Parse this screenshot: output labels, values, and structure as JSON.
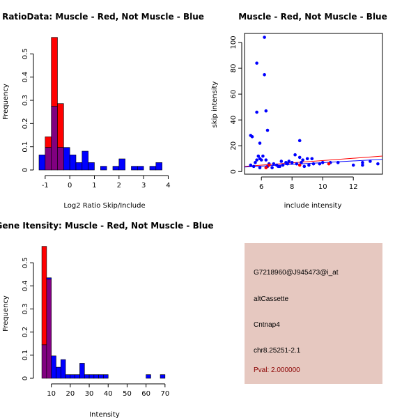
{
  "colors": {
    "red": "#ff0000",
    "blue": "#0000ff",
    "overlap": "#800080",
    "panel_bg": "#e6c8c0",
    "pval": "#8b0000"
  },
  "chart_data": [
    {
      "type": "bar",
      "title": "RatioData: Muscle - Red, Not Muscle - Blue",
      "xlabel": "Log2 Ratio Skip/Include",
      "ylabel": "Frequency",
      "xlim": [
        -1.25,
        4.1
      ],
      "ylim": [
        0,
        0.6
      ],
      "xticks": [
        -1,
        0,
        1,
        2,
        3,
        4
      ],
      "yticks": [
        0,
        0.1,
        0.2,
        0.3,
        0.4,
        0.5
      ],
      "bin_edges": [
        -1.25,
        -1.0,
        -0.75,
        -0.5,
        -0.25,
        0.0,
        0.25,
        0.5,
        0.75,
        1.0,
        1.25,
        1.5,
        1.75,
        2.0,
        2.25,
        2.5,
        2.75,
        3.0,
        3.25,
        3.5,
        3.75,
        4.0
      ],
      "series": [
        {
          "name": "Muscle",
          "color": "red",
          "values": [
            0,
            0.143,
            0.571,
            0.286,
            0,
            0,
            0,
            0,
            0,
            0,
            0,
            0,
            0,
            0,
            0,
            0,
            0,
            0,
            0,
            0,
            0
          ]
        },
        {
          "name": "Not Muscle",
          "color": "blue",
          "values": [
            0.065,
            0.097,
            0.274,
            0.097,
            0.097,
            0.065,
            0.032,
            0.081,
            0.032,
            0,
            0.016,
            0,
            0.016,
            0.048,
            0,
            0.016,
            0.016,
            0,
            0.016,
            0.032,
            0
          ]
        }
      ]
    },
    {
      "type": "scatter",
      "title": "Muscle - Red, Not Muscle - Blue",
      "xlabel": "include intensity",
      "ylabel": "skip intensity",
      "xlim": [
        4.9,
        13.9
      ],
      "ylim": [
        -2,
        107
      ],
      "xticks": [
        6,
        8,
        10,
        12
      ],
      "yticks": [
        0,
        20,
        40,
        60,
        80,
        100
      ],
      "points_blue": [
        [
          5.7,
          84
        ],
        [
          6.2,
          104
        ],
        [
          6.2,
          75
        ],
        [
          5.7,
          46
        ],
        [
          6.3,
          47
        ],
        [
          6.4,
          32
        ],
        [
          5.3,
          28
        ],
        [
          5.4,
          27
        ],
        [
          5.9,
          22
        ],
        [
          8.5,
          24
        ],
        [
          5.8,
          12
        ],
        [
          6.1,
          12
        ],
        [
          5.9,
          10
        ],
        [
          6.0,
          9
        ],
        [
          6.3,
          9
        ],
        [
          8.2,
          13
        ],
        [
          8.5,
          11
        ],
        [
          8.7,
          9
        ],
        [
          9.0,
          10
        ],
        [
          9.3,
          10
        ],
        [
          7.3,
          8
        ],
        [
          7.6,
          7
        ],
        [
          7.8,
          8
        ],
        [
          8.0,
          7
        ],
        [
          5.6,
          7
        ],
        [
          5.7,
          9
        ],
        [
          6.5,
          6
        ],
        [
          6.8,
          6
        ],
        [
          7.0,
          5
        ],
        [
          7.2,
          4
        ],
        [
          7.4,
          5
        ],
        [
          7.7,
          6
        ],
        [
          8.3,
          6
        ],
        [
          8.6,
          7
        ],
        [
          9.1,
          5
        ],
        [
          9.4,
          6
        ],
        [
          9.8,
          6
        ],
        [
          10.0,
          7
        ],
        [
          5.3,
          5
        ],
        [
          5.5,
          4
        ],
        [
          5.9,
          3
        ],
        [
          6.4,
          4
        ],
        [
          6.7,
          3
        ],
        [
          7.1,
          4
        ],
        [
          8.8,
          4
        ],
        [
          10.5,
          7
        ],
        [
          11.0,
          7
        ],
        [
          12.0,
          5
        ],
        [
          12.6,
          5
        ],
        [
          12.6,
          7
        ],
        [
          13.1,
          8
        ],
        [
          13.6,
          6
        ]
      ],
      "points_red": [
        [
          6.3,
          3
        ],
        [
          6.5,
          5
        ],
        [
          8.5,
          5
        ],
        [
          10.4,
          6
        ]
      ],
      "lines": [
        {
          "color": "red",
          "from": [
            4.9,
            4.0
          ],
          "to": [
            13.9,
            12.0
          ]
        },
        {
          "color": "blue",
          "from": [
            4.9,
            3.5
          ],
          "to": [
            13.9,
            9.5
          ]
        }
      ]
    },
    {
      "type": "bar",
      "title": "Gene Itensity: Muscle - Red, Not Muscle - Blue",
      "xlabel": "Intensity",
      "ylabel": "Frequency",
      "xlim": [
        3.5,
        73
      ],
      "ylim": [
        0,
        0.6
      ],
      "xticks": [
        10,
        20,
        30,
        40,
        50,
        60,
        70
      ],
      "yticks": [
        0,
        0.1,
        0.2,
        0.3,
        0.4,
        0.5
      ],
      "bin_edges": [
        5,
        7.5,
        10,
        12.5,
        15,
        17.5,
        20,
        22.5,
        25,
        27.5,
        30,
        32.5,
        35,
        37.5,
        40,
        42.5,
        45,
        47.5,
        50,
        52.5,
        55,
        57.5,
        60,
        62.5,
        65,
        67.5,
        70,
        72.5
      ],
      "series": [
        {
          "name": "Muscle",
          "color": "red",
          "values": [
            0.571,
            0.429,
            0,
            0,
            0,
            0,
            0,
            0,
            0,
            0,
            0,
            0,
            0,
            0,
            0,
            0,
            0,
            0,
            0,
            0,
            0,
            0,
            0,
            0,
            0,
            0,
            0
          ]
        },
        {
          "name": "Not Muscle",
          "color": "blue",
          "values": [
            0.145,
            0.435,
            0.097,
            0.048,
            0.081,
            0.016,
            0.016,
            0.016,
            0.065,
            0.016,
            0.016,
            0.016,
            0.016,
            0.016,
            0,
            0,
            0,
            0,
            0,
            0,
            0,
            0,
            0.016,
            0,
            0,
            0.016,
            0
          ]
        }
      ]
    }
  ],
  "info": {
    "probe": "G7218960@J945473@i_at",
    "event_type": "altCassette",
    "gene": "Cntnap4",
    "location": "chr8.25251-2.1",
    "pval": "Pval: 2.000000"
  }
}
